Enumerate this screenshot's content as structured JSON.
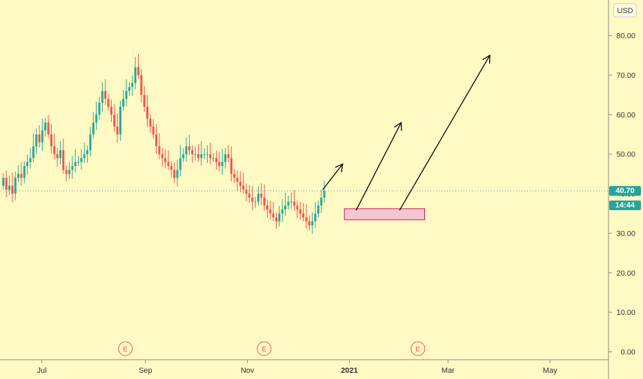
{
  "currency": "USD",
  "last_price_label": "40.70",
  "countdown_label": "14:44",
  "colors": {
    "background": "#fff9c4",
    "up": "#26a69a",
    "down": "#ef5350",
    "price_line": "#26a69a",
    "zone_fill": "#f4c6d0",
    "zone_stroke": "#c2185b",
    "arrow": "#000000",
    "earnings": "#ef5350",
    "axis_text": "#333333"
  },
  "events": [
    {
      "label": "E",
      "date": "2020-08-20"
    },
    {
      "label": "E",
      "date": "2020-11-11"
    },
    {
      "label": "E",
      "date": "2021-02-11"
    }
  ],
  "chart_data": {
    "type": "candlestick",
    "x_axis": {
      "tick_labels": [
        "Jul",
        "Sep",
        "Nov",
        "2021",
        "Mar",
        "May"
      ],
      "tick_dates": [
        "2020-07-01",
        "2020-09-01",
        "2020-11-01",
        "2021-01-01",
        "2021-03-01",
        "2021-05-01"
      ],
      "range": [
        "2020-06-06",
        "2021-06-05"
      ]
    },
    "y_axis": {
      "tick_labels": [
        "0.00",
        "10.00",
        "20.00",
        "30.00",
        "40.00",
        "50.00",
        "60.00",
        "70.00",
        "80.00"
      ],
      "ticks": [
        0,
        10,
        20,
        30,
        40,
        50,
        60,
        70,
        80
      ],
      "range": [
        -2,
        89
      ],
      "position": "right"
    },
    "grid": false,
    "last_price": 40.7,
    "series": [
      {
        "closes": [
          [
            44,
            41,
            42,
            40,
            44,
            45,
            44,
            47,
            48,
            49,
            52,
            55,
            53,
            56,
            58,
            55,
            52,
            50,
            49,
            51,
            46,
            45,
            46,
            47,
            48,
            48,
            49,
            50,
            51,
            55,
            58,
            60,
            63,
            66,
            64,
            62,
            60,
            57,
            55,
            62,
            64,
            66,
            67,
            68,
            72,
            70,
            65,
            62,
            59,
            57,
            55,
            52,
            50,
            49,
            48,
            47,
            46,
            44,
            46,
            49,
            50,
            52,
            51,
            50,
            50,
            49,
            50,
            50,
            50,
            49,
            49,
            48,
            47,
            48,
            50,
            49,
            45,
            44,
            43,
            42,
            41,
            40,
            39,
            38,
            38,
            40,
            39,
            37,
            36,
            35,
            34,
            33,
            35,
            36,
            37,
            38,
            38,
            37,
            36,
            35,
            34,
            33,
            32,
            33,
            35,
            37,
            39,
            40.7
          ]
        ]
      }
    ],
    "annotations": {
      "support_zone": {
        "x_start": "2020-12-29",
        "x_end": "2021-02-15",
        "y_top": 36.2,
        "y_bottom": 33.4
      },
      "arrows": [
        {
          "from": {
            "x": "2020-12-16",
            "y": 41.0
          },
          "to": {
            "x": "2020-12-28",
            "y": 47.5
          }
        },
        {
          "from": {
            "x": "2021-01-05",
            "y": 35.8
          },
          "to": {
            "x": "2021-02-01",
            "y": 58.0
          }
        },
        {
          "from": {
            "x": "2021-01-31",
            "y": 35.8
          },
          "to": {
            "x": "2021-03-26",
            "y": 75.0
          }
        }
      ]
    }
  }
}
